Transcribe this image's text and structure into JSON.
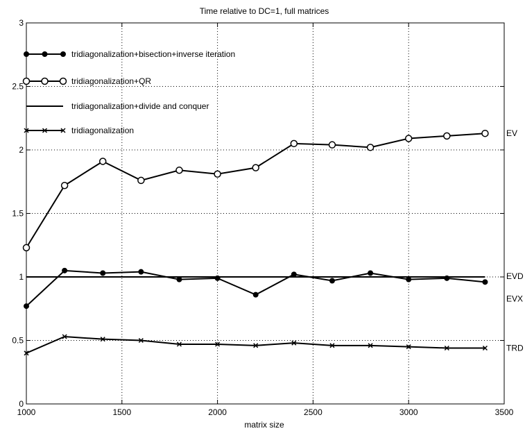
{
  "chart_data": {
    "type": "line",
    "title": "Time relative to DC=1, full matrices",
    "xlabel": "matrix size",
    "ylabel": "",
    "xlim": [
      1000,
      3500
    ],
    "ylim": [
      0,
      3
    ],
    "x_ticks": [
      1000,
      1500,
      2000,
      2500,
      3000,
      3500
    ],
    "y_ticks": [
      0,
      0.5,
      1,
      1.5,
      2,
      2.5,
      3
    ],
    "x_tick_labels": [
      "1000",
      "1500",
      "2000",
      "2500",
      "3000",
      "3500"
    ],
    "y_tick_labels": [
      "0",
      "0.5",
      "1",
      "1.5",
      "2",
      "2.5",
      "3"
    ],
    "grid": true,
    "legend_position": "top-left",
    "x": [
      1000,
      1200,
      1400,
      1600,
      1800,
      2000,
      2200,
      2400,
      2600,
      2800,
      3000,
      3200,
      3400
    ],
    "series": [
      {
        "name": "tridiagonalization+bisection+inverse iteration",
        "marker": "filled-circle",
        "end_label": "EVX",
        "values": [
          0.77,
          1.05,
          1.03,
          1.04,
          0.98,
          0.99,
          0.86,
          1.02,
          0.97,
          1.03,
          0.98,
          0.99,
          0.96
        ]
      },
      {
        "name": "tridiagonalization+QR",
        "marker": "open-circle",
        "end_label": "EV",
        "values": [
          1.23,
          1.72,
          1.91,
          1.76,
          1.84,
          1.81,
          1.86,
          2.05,
          2.04,
          2.02,
          2.09,
          2.11,
          2.13
        ]
      },
      {
        "name": "tridiagonalization+divide and conquer",
        "marker": "none",
        "end_label": "EVD",
        "values": [
          1,
          1,
          1,
          1,
          1,
          1,
          1,
          1,
          1,
          1,
          1,
          1,
          1
        ]
      },
      {
        "name": "tridiagonalization",
        "marker": "x",
        "end_label": "TRD",
        "values": [
          0.4,
          0.53,
          0.51,
          0.5,
          0.47,
          0.47,
          0.46,
          0.48,
          0.46,
          0.46,
          0.45,
          0.44,
          0.44
        ]
      }
    ]
  }
}
